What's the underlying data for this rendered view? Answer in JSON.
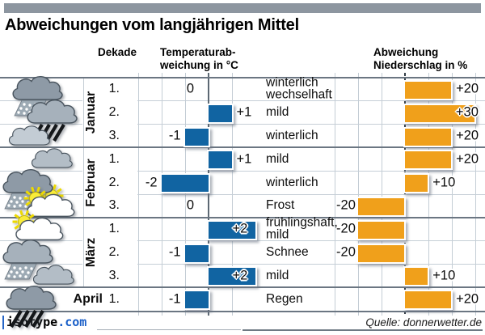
{
  "title": "Abweichungen vom langjährigen Mittel",
  "header": {
    "dekade": "Dekade",
    "temp_line1": "Temperaturab-",
    "temp_line2": "weichung in °C",
    "precip_line1": "Abweichung",
    "precip_line2": "Niederschlag in %"
  },
  "footer": {
    "logo_text": "isotype",
    "logo_suffix": ".com",
    "source": "Quelle: donnerwetter.de"
  },
  "colors": {
    "temp_bar": "#1164a2",
    "precip_bar": "#f0a01b",
    "accent_bar": "#8d96a0",
    "grid_light": "#c4cdd5",
    "grid_dark": "#6b7682",
    "sun": "#f9ec39",
    "logo_blue": "#1a5fc8"
  },
  "months": [
    {
      "label": "Januar",
      "rows": 3,
      "inline": false
    },
    {
      "label": "Februar",
      "rows": 3,
      "inline": false
    },
    {
      "label": "März",
      "rows": 3,
      "inline": false
    },
    {
      "label": "April",
      "rows": 1,
      "inline": true
    }
  ],
  "rows": [
    {
      "decade": "1.",
      "temp": 0,
      "temp_label": "0",
      "condition": "winterlich wechselhaft",
      "condition_lines": [
        "winterlich",
        "wechselhaft"
      ],
      "precip": 20,
      "precip_label": "+20",
      "icon": "snow-shower-cloud",
      "icon_variant": "dark"
    },
    {
      "decade": "2.",
      "temp": 1,
      "temp_label": "+1",
      "condition": "mild",
      "condition_lines": [
        "mild"
      ],
      "precip": 30,
      "precip_label": "+30",
      "icon": "heavy-rain-cloud",
      "icon_variant": "mid"
    },
    {
      "decade": "3.",
      "temp": -1,
      "temp_label": "-1",
      "condition": "winterlich",
      "condition_lines": [
        "winterlich"
      ],
      "precip": 20,
      "precip_label": "+20",
      "icon": "overcast-cloud",
      "icon_variant": "light"
    },
    {
      "decade": "1.",
      "temp": 1,
      "temp_label": "+1",
      "condition": "mild",
      "condition_lines": [
        "mild"
      ],
      "precip": 20,
      "precip_label": "+20",
      "icon": "overcast-cloud",
      "icon_variant": "soft"
    },
    {
      "decade": "2.",
      "temp": -2,
      "temp_label": "-2",
      "condition": "winterlich",
      "condition_lines": [
        "winterlich"
      ],
      "precip": 10,
      "precip_label": "+10",
      "icon": "snow-sun-cloud",
      "icon_variant": "dark"
    },
    {
      "decade": "3.",
      "temp": 0,
      "temp_label": "0",
      "condition": "Frost",
      "condition_lines": [
        "Frost"
      ],
      "precip": -20,
      "precip_label": "-20",
      "icon": "sun-behind-cloud",
      "icon_variant": "white"
    },
    {
      "decade": "1.",
      "temp": 2,
      "temp_label": "+2",
      "condition": "frühlingshaft, mild",
      "condition_lines": [
        "frühlingshaft,",
        "mild"
      ],
      "precip": -20,
      "precip_label": "-20",
      "icon": "sun-behind-cloud",
      "icon_variant": "white"
    },
    {
      "decade": "2.",
      "temp": -1,
      "temp_label": "-1",
      "condition": "Schnee",
      "condition_lines": [
        "Schnee"
      ],
      "precip": -20,
      "precip_label": "-20",
      "icon": "snow-shower-cloud",
      "icon_variant": "mid"
    },
    {
      "decade": "3.",
      "temp": 2,
      "temp_label": "+2",
      "condition": "mild",
      "condition_lines": [
        "mild"
      ],
      "precip": 10,
      "precip_label": "+10",
      "icon": "overcast-cloud",
      "icon_variant": "soft"
    },
    {
      "decade": "1.",
      "temp": -1,
      "temp_label": "-1",
      "condition": "Regen",
      "condition_lines": [
        "Regen"
      ],
      "precip": 20,
      "precip_label": "+20",
      "icon": "heavy-rain-cloud",
      "icon_variant": "dark"
    }
  ],
  "chart_data": {
    "type": "bar",
    "orientation": "horizontal",
    "title": "Abweichungen vom langjährigen Mittel",
    "categories": [
      "Januar 1.",
      "Januar 2.",
      "Januar 3.",
      "Februar 1.",
      "Februar 2.",
      "Februar 3.",
      "März 1.",
      "März 2.",
      "März 3.",
      "April 1."
    ],
    "series": [
      {
        "name": "Temperaturabweichung in °C",
        "unit": "°C",
        "color": "#1164a2",
        "xlim": [
          -3,
          2
        ],
        "values": [
          0,
          1,
          -1,
          1,
          -2,
          0,
          2,
          -1,
          2,
          -1
        ],
        "labels": [
          "0",
          "+1",
          "-1",
          "+1",
          "-2",
          "0",
          "+2",
          "-1",
          "+2",
          "-1"
        ]
      },
      {
        "name": "Abweichung Niederschlag in %",
        "unit": "%",
        "color": "#f0a01b",
        "xlim": [
          -30,
          30
        ],
        "values": [
          20,
          30,
          20,
          20,
          10,
          -20,
          -20,
          -20,
          10,
          20
        ],
        "labels": [
          "+20",
          "+30",
          "+20",
          "+20",
          "+10",
          "-20",
          "-20",
          "-20",
          "+10",
          "+20"
        ]
      }
    ],
    "annotations": [
      "winterlich wechselhaft",
      "mild",
      "winterlich",
      "mild",
      "winterlich",
      "Frost",
      "frühlingshaft, mild",
      "Schnee",
      "mild",
      "Regen"
    ],
    "grid": true,
    "source": "Quelle: donnerwetter.de"
  }
}
